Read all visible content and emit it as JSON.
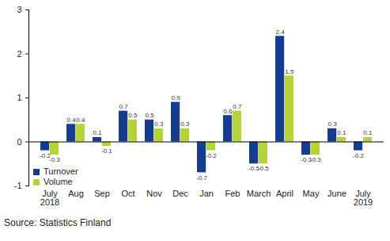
{
  "chart_data": {
    "type": "bar",
    "categories": [
      "July\n2018",
      "Aug",
      "Sep",
      "Oct",
      "Nov",
      "Dec",
      "Jan",
      "Feb",
      "March",
      "April",
      "May",
      "June",
      "July\n2019"
    ],
    "series": [
      {
        "name": "Turnover",
        "color": "#143d8f",
        "values": [
          -0.2,
          0.4,
          0.1,
          0.7,
          0.5,
          0.9,
          -0.7,
          0.6,
          -0.5,
          2.4,
          -0.3,
          0.3,
          -0.2
        ]
      },
      {
        "name": "Volume",
        "color": "#b5d334",
        "values": [
          -0.3,
          0.4,
          -0.1,
          0.5,
          0.3,
          0.3,
          -0.2,
          0.7,
          -0.5,
          1.5,
          -0.3,
          0.1,
          0.1
        ]
      }
    ],
    "ylim": [
      -1,
      3
    ],
    "yticks": [
      -1,
      0,
      1,
      2,
      3
    ],
    "grid": false,
    "data_labels": true,
    "legend": "bottom-left",
    "caption": "Source: Statistics Finland"
  }
}
